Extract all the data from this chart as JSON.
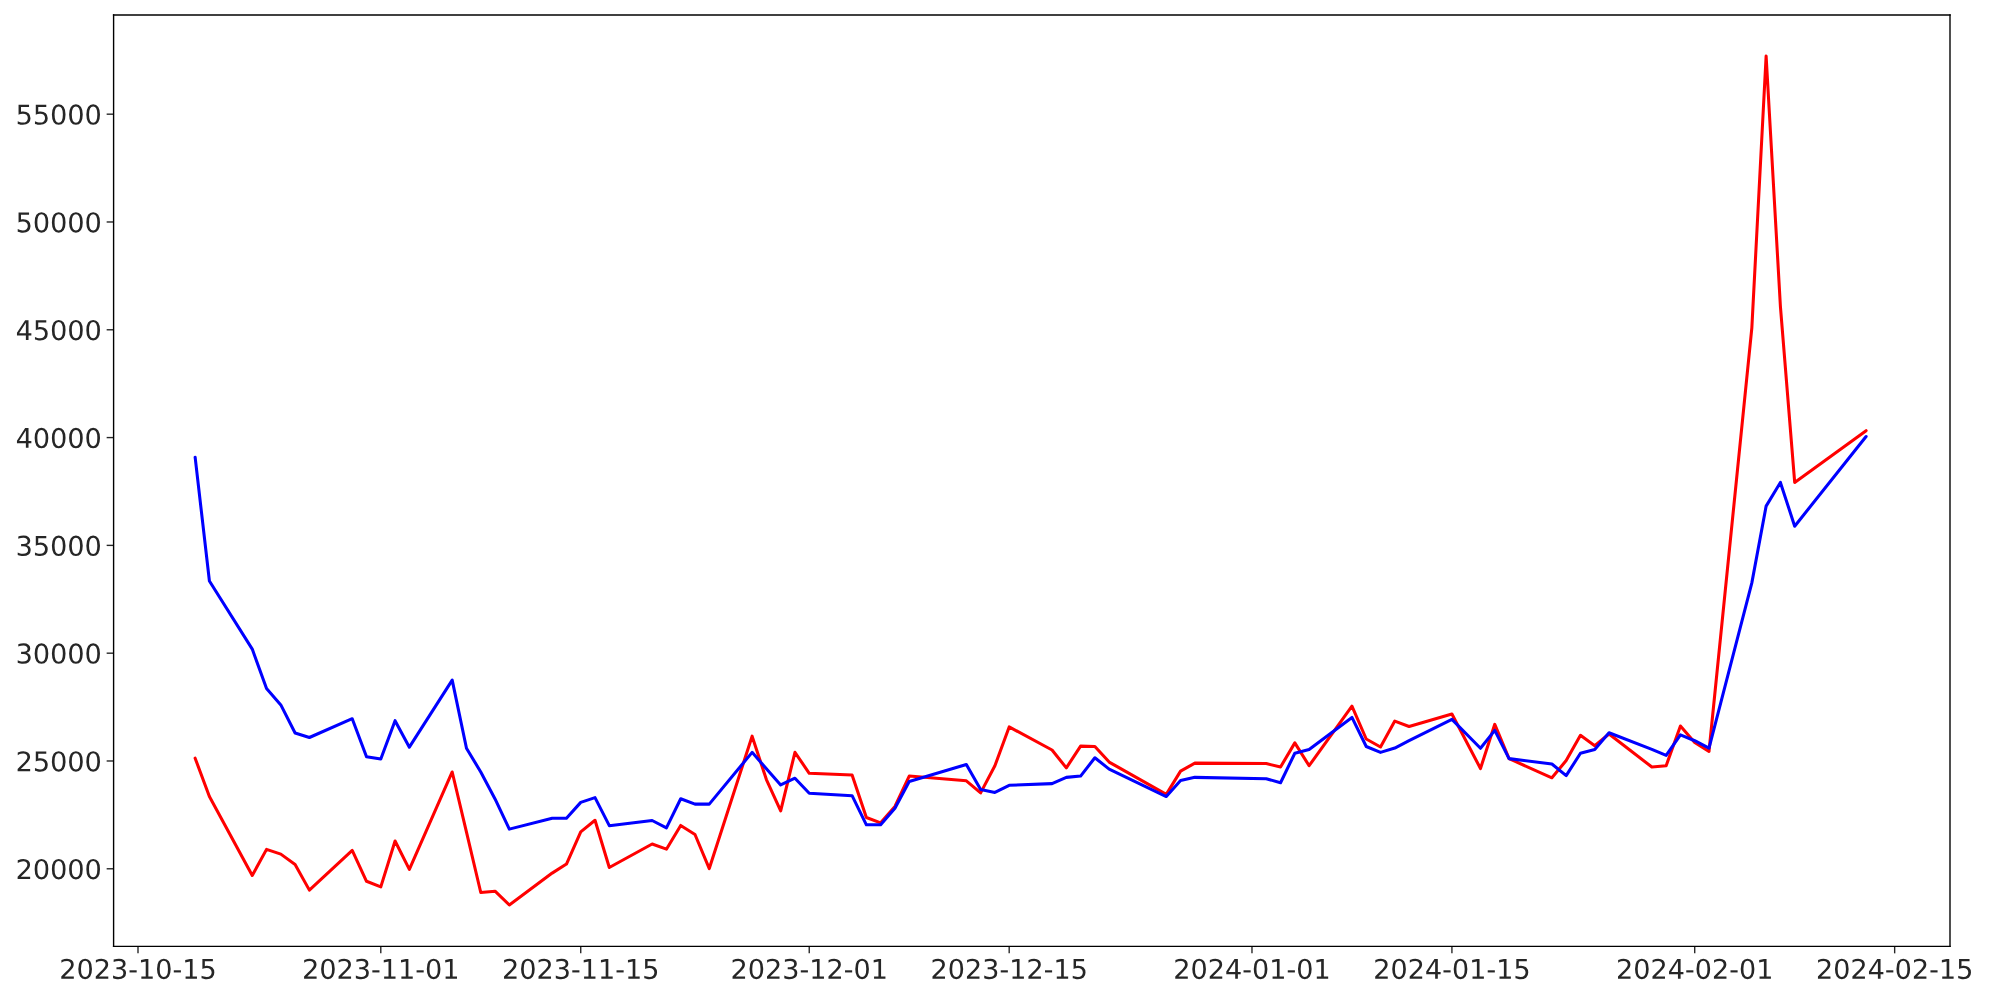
{
  "chart_data": {
    "type": "line",
    "x": [
      "2023-10-19",
      "2023-10-20",
      "2023-10-23",
      "2023-10-24",
      "2023-10-25",
      "2023-10-26",
      "2023-10-27",
      "2023-10-30",
      "2023-10-31",
      "2023-11-01",
      "2023-11-02",
      "2023-11-03",
      "2023-11-06",
      "2023-11-07",
      "2023-11-08",
      "2023-11-09",
      "2023-11-10",
      "2023-11-13",
      "2023-11-14",
      "2023-11-15",
      "2023-11-16",
      "2023-11-17",
      "2023-11-20",
      "2023-11-21",
      "2023-11-22",
      "2023-11-23",
      "2023-11-24",
      "2023-11-27",
      "2023-11-28",
      "2023-11-29",
      "2023-11-30",
      "2023-12-01",
      "2023-12-04",
      "2023-12-05",
      "2023-12-06",
      "2023-12-07",
      "2023-12-08",
      "2023-12-12",
      "2023-12-13",
      "2023-12-14",
      "2023-12-15",
      "2023-12-18",
      "2023-12-19",
      "2023-12-20",
      "2023-12-21",
      "2023-12-22",
      "2023-12-26",
      "2023-12-27",
      "2023-12-28",
      "2024-01-02",
      "2024-01-03",
      "2024-01-04",
      "2024-01-05",
      "2024-01-08",
      "2024-01-09",
      "2024-01-10",
      "2024-01-11",
      "2024-01-12",
      "2024-01-15",
      "2024-01-17",
      "2024-01-18",
      "2024-01-19",
      "2024-01-22",
      "2024-01-23",
      "2024-01-24",
      "2024-01-25",
      "2024-01-26",
      "2024-01-29",
      "2024-01-30",
      "2024-01-31",
      "2024-02-01",
      "2024-02-02",
      "2024-02-05",
      "2024-02-06",
      "2024-02-07",
      "2024-02-08",
      "2024-02-13"
    ],
    "series": [
      {
        "color": "#ff0000",
        "values": [
          25130,
          23350,
          19690,
          20900,
          20680,
          20200,
          19010,
          20850,
          19420,
          19160,
          21290,
          19970,
          24490,
          21700,
          18900,
          18960,
          18320,
          19800,
          20220,
          21710,
          22250,
          20060,
          21150,
          20910,
          22010,
          21590,
          20010,
          26150,
          24140,
          22690,
          25400,
          24430,
          24350,
          22380,
          22130,
          22890,
          24300,
          24080,
          23520,
          24780,
          26580,
          25510,
          24680,
          25690,
          25670,
          24950,
          23450,
          24530,
          24900,
          24880,
          24720,
          25840,
          24780,
          27540,
          26020,
          25650,
          26850,
          26600,
          27180,
          24650,
          26700,
          25110,
          24220,
          25020,
          26190,
          25710,
          26250,
          24720,
          24780,
          26620,
          25860,
          25440,
          45090,
          57700,
          46090,
          37920,
          40320
        ]
      },
      {
        "color": "#0000ff",
        "values": [
          39090,
          33350,
          30190,
          28360,
          27600,
          26300,
          26090,
          26960,
          25200,
          25090,
          26870,
          25640,
          28750,
          25590,
          24490,
          23240,
          21840,
          22340,
          22340,
          23080,
          23300,
          22000,
          22240,
          21900,
          23250,
          23000,
          23000,
          25400,
          24640,
          23890,
          24200,
          23500,
          23390,
          22040,
          22040,
          22810,
          24050,
          24840,
          23680,
          23540,
          23870,
          23950,
          24240,
          24300,
          25150,
          24620,
          23350,
          24100,
          24240,
          24180,
          23990,
          25360,
          25530,
          27020,
          25670,
          25400,
          25600,
          25940,
          26930,
          25590,
          26420,
          25110,
          24860,
          24320,
          25360,
          25530,
          26310,
          25540,
          25260,
          26210,
          25940,
          25600,
          33260,
          36820,
          37920,
          35890,
          40050
        ]
      }
    ],
    "xlim": [
      "2023-10-13T07:00",
      "2024-02-18T21:00"
    ],
    "xticks": [
      "2023-10-15",
      "2023-11-01",
      "2023-11-15",
      "2023-12-01",
      "2023-12-15",
      "2024-01-01",
      "2024-01-15",
      "2024-02-01",
      "2024-02-15"
    ],
    "ylim": [
      16400,
      59600
    ],
    "yticks": [
      20000,
      25000,
      30000,
      35000,
      40000,
      45000,
      50000,
      55000
    ]
  }
}
